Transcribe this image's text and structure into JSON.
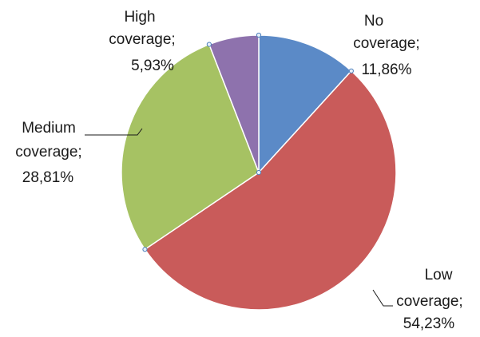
{
  "chart_data": {
    "type": "pie",
    "title": "",
    "slices": [
      {
        "label": "No coverage",
        "value": 11.86,
        "value_text": "11,86%",
        "color": "#5b8ac7"
      },
      {
        "label": "Low coverage",
        "value": 54.23,
        "value_text": "54,23%",
        "color": "#c95b5a"
      },
      {
        "label": "Medium coverage",
        "value": 28.81,
        "value_text": "28,81%",
        "color": "#a6c263"
      },
      {
        "label": "High coverage",
        "value": 5.93,
        "value_text": "5,93%",
        "color": "#8e72ad"
      }
    ],
    "start_angle_deg": 0,
    "direction": "clockwise",
    "legend": "none",
    "data_labels": "outside with leader lines"
  }
}
